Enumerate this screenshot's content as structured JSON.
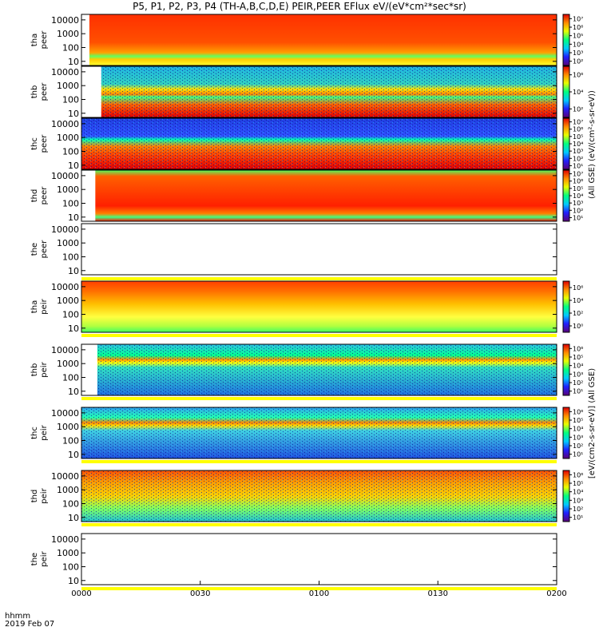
{
  "chart_data": {
    "type": "heatmap",
    "title": "P5, P1, P2, P3, P4 (TH-A,B,C,D,E) PEIR,PEER EFlux eV/(eV*cm²*sec*sr)",
    "x_axis": {
      "label": "hhmm",
      "date_label": "2019 Feb 07",
      "ticks": [
        "0000",
        "0030",
        "0100",
        "0130",
        "0200"
      ],
      "range_minutes": [
        0,
        120
      ]
    },
    "y_ticks": [
      "10",
      "100",
      "1000",
      "10000"
    ],
    "y_range_eV": [
      5,
      25000
    ],
    "y_scale": "log",
    "colorbar_label": "(All GSE) (eV/(cm²-s-sr-eV))",
    "colorbar_label_ion": "[eV/(cm2-s-sr-eV)] (All GSE)",
    "panels": [
      {
        "probe": "tha",
        "species": "peer",
        "data_start_min": 2.0,
        "data_end_min": 120,
        "cbar_ticks": [
          "10²",
          "10³",
          "10⁴",
          "10⁵",
          "10⁶",
          "10⁷"
        ]
      },
      {
        "probe": "thb",
        "species": "peer",
        "data_start_min": 5.0,
        "data_end_min": 120,
        "cbar_ticks": [
          "10²",
          "10⁴",
          "10⁶"
        ]
      },
      {
        "probe": "thc",
        "species": "peer",
        "data_start_min": 0.0,
        "data_end_min": 120,
        "cbar_ticks": [
          "10¹",
          "10²",
          "10³",
          "10⁴",
          "10⁵",
          "10⁶",
          "10⁷"
        ]
      },
      {
        "probe": "thd",
        "species": "peer",
        "data_start_min": 3.5,
        "data_end_min": 120,
        "cbar_ticks": [
          "10¹",
          "10²",
          "10³",
          "10⁴",
          "10⁵",
          "10⁶",
          "10⁷"
        ]
      },
      {
        "probe": "the",
        "species": "peer",
        "data_start_min": null,
        "data_end_min": null,
        "cbar_ticks": []
      },
      {
        "probe": "tha",
        "species": "peir",
        "data_start_min": 0.0,
        "data_end_min": 120,
        "cbar_ticks": [
          "10⁰",
          "10²",
          "10⁴",
          "10⁶"
        ]
      },
      {
        "probe": "thb",
        "species": "peir",
        "data_start_min": 4.0,
        "data_end_min": 120,
        "cbar_ticks": [
          "10¹",
          "10²",
          "10³",
          "10⁴",
          "10⁵",
          "10⁶"
        ]
      },
      {
        "probe": "thc",
        "species": "peir",
        "data_start_min": 0.0,
        "data_end_min": 120,
        "cbar_ticks": [
          "10¹",
          "10²",
          "10³",
          "10⁴",
          "10⁵",
          "10⁶"
        ]
      },
      {
        "probe": "thd",
        "species": "peir",
        "data_start_min": 0.0,
        "data_end_min": 120,
        "cbar_ticks": [
          "10¹",
          "10²",
          "10³",
          "10⁴",
          "10⁵",
          "10⁶"
        ]
      },
      {
        "probe": "the",
        "species": "peir",
        "data_start_min": null,
        "data_end_min": null,
        "cbar_ticks": []
      }
    ],
    "colorscale": [
      "#5a0078",
      "#2020ff",
      "#00c8ff",
      "#00ff80",
      "#e8ff00",
      "#ff9000",
      "#e00000"
    ]
  }
}
